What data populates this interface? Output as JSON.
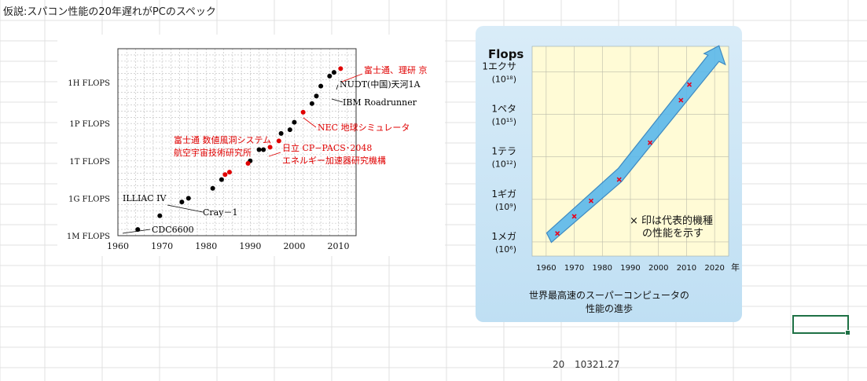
{
  "sheet": {
    "title": "仮説:スパコン性能の20年遅れがPCのスペック",
    "cell_year": "20",
    "cell_value": "10321.27"
  },
  "chart_data": [
    {
      "type": "scatter",
      "title": "",
      "xlabel": "",
      "ylabel": "",
      "x_ticks": [
        "1960",
        "1970",
        "1980",
        "1990",
        "2000",
        "2010"
      ],
      "xlim": [
        1960,
        2014
      ],
      "y_scale": "log",
      "y_ticks": [
        "1M FLOPS",
        "1G FLOPS",
        "1T FLOPS",
        "1P FLOPS",
        "1H FLOPS"
      ],
      "ylim_log10": [
        6,
        21
      ],
      "grid": true,
      "series": [
        {
          "color": "#000000",
          "points": [
            [
              1964.5,
              6.5
            ],
            [
              1969.5,
              7.6
            ],
            [
              1974.5,
              8.7
            ],
            [
              1976,
              9.0
            ],
            [
              1981.5,
              9.8
            ],
            [
              1983.5,
              10.5
            ],
            [
              1990,
              12.0
            ],
            [
              1992,
              12.9
            ],
            [
              1993,
              12.9
            ],
            [
              1997,
              14.2
            ],
            [
              1999,
              14.5
            ],
            [
              2000,
              15.1
            ],
            [
              2004,
              16.6
            ],
            [
              2005,
              17.2
            ],
            [
              2006,
              18.0
            ],
            [
              2008,
              18.8
            ],
            [
              2009,
              19.1
            ]
          ]
        },
        {
          "color": "#e00000",
          "points": [
            [
              1984.3,
              10.9
            ],
            [
              1985.3,
              11.1
            ],
            [
              1989.5,
              11.8
            ],
            [
              1994.5,
              13.1
            ],
            [
              1996.5,
              13.6
            ],
            [
              2002,
              15.9
            ],
            [
              2010.5,
              19.4
            ]
          ]
        }
      ],
      "annotations": [
        {
          "text": "CDC6600",
          "color": "#000000"
        },
        {
          "text": "ILLIAC IV",
          "color": "#000000"
        },
        {
          "text": "Cray－1",
          "color": "#000000"
        },
        {
          "text": "富士通 数値風洞システム",
          "color": "#e00000"
        },
        {
          "text": "航空宇宙技術研究所",
          "color": "#e00000"
        },
        {
          "text": "日立 CP−PACS･2048",
          "color": "#e00000"
        },
        {
          "text": "エネルギー加速器研究機構",
          "color": "#e00000"
        },
        {
          "text": "NEC 地球シミュレータ",
          "color": "#e00000"
        },
        {
          "text": "IBM Roadrunner",
          "color": "#000000"
        },
        {
          "text": "NUDT(中国)天河1A",
          "color": "#000000"
        },
        {
          "text": "富士通、理研 京",
          "color": "#e00000"
        }
      ]
    },
    {
      "type": "scatter",
      "title": "",
      "ylabel": "Flops",
      "xlabel": "年",
      "caption": [
        "世界最高速のスーパーコンピュータの",
        "性能の進歩"
      ],
      "x_ticks": [
        "1960",
        "1970",
        "1980",
        "1990",
        "2000",
        "2010",
        "2020"
      ],
      "xlim": [
        1955,
        2025
      ],
      "y_scale": "log",
      "y_ticks": [
        {
          "label": "1メガ",
          "exp": "(10⁶)"
        },
        {
          "label": "1ギガ",
          "exp": "(10⁹)"
        },
        {
          "label": "1テラ",
          "exp": "(10¹²)"
        },
        {
          "label": "1ペタ",
          "exp": "(10¹⁵)"
        },
        {
          "label": "1エクサ",
          "exp": "(10¹⁸)"
        }
      ],
      "ylim_log10": [
        5,
        19.8
      ],
      "grid": true,
      "points": [
        [
          1964,
          6.6
        ],
        [
          1970,
          7.8
        ],
        [
          1976,
          8.9
        ],
        [
          1986,
          10.4
        ],
        [
          1997,
          13.0
        ],
        [
          2008,
          16.0
        ],
        [
          2011,
          17.1
        ]
      ],
      "trend_arrow": [
        [
          1961,
          6.3
        ],
        [
          1986,
          10.7
        ],
        [
          2021,
          19.4
        ]
      ],
      "legend": [
        "× 印は代表的機種",
        "の性能を示す"
      ],
      "colors": {
        "marker": "#e8001c",
        "arrow_fill": "#5ab8ec",
        "arrow_edge": "#2b7fc0",
        "plot_bg": "#fffbd6",
        "panel_bg": "#cfe6f6"
      }
    }
  ]
}
